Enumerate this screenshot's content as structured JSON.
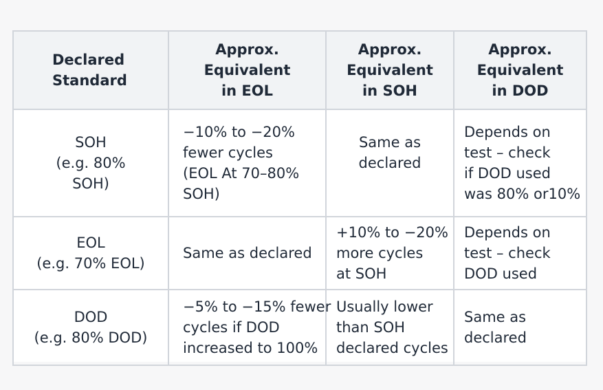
{
  "headers": [
    [
      "Declared",
      "Standard"
    ],
    [
      "Approx.",
      "Equivalent",
      "in EOL"
    ],
    [
      "Approx.",
      "Equivalent",
      "in SOH"
    ],
    [
      "Approx.",
      "Equivalent",
      "in DOD"
    ]
  ],
  "rows": [
    {
      "standard": [
        "SOH",
        "(e.g. 80%",
        "SOH)"
      ],
      "eol": [
        "−10% to −20%",
        "fewer cycles",
        "(EOL At 70–80%",
        "SOH)"
      ],
      "soh": [
        "Same as",
        "declared"
      ],
      "dod": [
        "Depends on",
        "test – check",
        "if DOD used",
        "was 80% or10%"
      ]
    },
    {
      "standard": [
        "EOL",
        "(e.g. 70% EOL)"
      ],
      "eol": [
        "Same as declared"
      ],
      "soh": [
        "+10% to −20%",
        "more cycles",
        "at SOH"
      ],
      "dod": [
        "Depends on",
        "test – check",
        "DOD used"
      ]
    },
    {
      "standard": [
        "DOD",
        "(e.g. 80% DOD)"
      ],
      "eol": [
        "−5% to −15% fewer",
        "cycles if DOD",
        "increased to 100%"
      ],
      "soh": [
        "Usually lower",
        "than SOH",
        "declared cycles"
      ],
      "dod": [
        "Same as",
        "declared"
      ]
    }
  ]
}
